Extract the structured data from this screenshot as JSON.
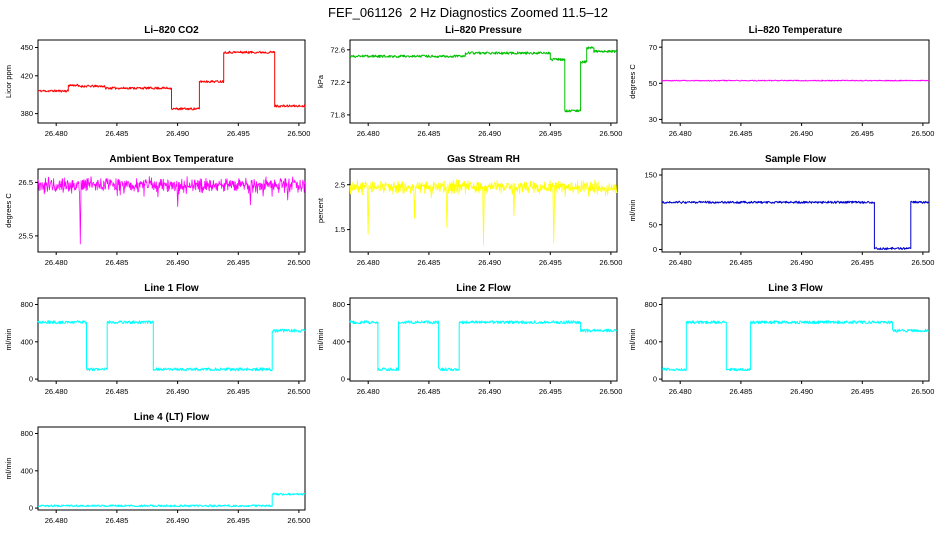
{
  "title": "FEF_061126  2 Hz Diagnostics Zoomed 11.5–12",
  "chart_data": [
    {
      "type": "line",
      "title": "Li–820 CO2",
      "ylabel": "Licor ppm",
      "color": "#ff0000",
      "xlim": [
        26.4785,
        26.5005
      ],
      "xticks": [
        26.48,
        26.485,
        26.49,
        26.495,
        26.5
      ],
      "xtick_labels": [
        "26.480",
        "26.485",
        "26.490",
        "26.495",
        "26.500"
      ],
      "ylim": [
        370,
        458
      ],
      "yticks": [
        380,
        420,
        450
      ],
      "ytick_labels": [
        "380",
        "420",
        "450"
      ],
      "series_type": "steps",
      "jitter": 1.2,
      "steps": [
        [
          26.4785,
          26.481,
          404
        ],
        [
          26.481,
          26.4818,
          410
        ],
        [
          26.4818,
          26.484,
          409
        ],
        [
          26.484,
          26.4895,
          407
        ],
        [
          26.4895,
          26.4918,
          385
        ],
        [
          26.4918,
          26.4938,
          414
        ],
        [
          26.4938,
          26.498,
          445
        ],
        [
          26.498,
          26.5005,
          388
        ]
      ]
    },
    {
      "type": "line",
      "title": "Li–820 Pressure",
      "ylabel": "kPa",
      "color": "#00c000",
      "xlim": [
        26.4785,
        26.5005
      ],
      "xticks": [
        26.48,
        26.485,
        26.49,
        26.495,
        26.5
      ],
      "xtick_labels": [
        "26.480",
        "26.485",
        "26.490",
        "26.495",
        "26.500"
      ],
      "ylim": [
        71.7,
        72.72
      ],
      "yticks": [
        71.8,
        72.2,
        72.6
      ],
      "ytick_labels": [
        "71.8",
        "72.2",
        "72.6"
      ],
      "series_type": "steps",
      "jitter": 0.015,
      "steps": [
        [
          26.4785,
          26.488,
          72.52
        ],
        [
          26.488,
          26.495,
          72.56
        ],
        [
          26.495,
          26.4962,
          72.48
        ],
        [
          26.4962,
          26.4975,
          71.85
        ],
        [
          26.4975,
          26.498,
          72.45
        ],
        [
          26.498,
          26.4986,
          72.62
        ],
        [
          26.4986,
          26.5005,
          72.58
        ]
      ]
    },
    {
      "type": "line",
      "title": "Li–820 Temperature",
      "ylabel": "degrees C",
      "color": "#ff00ff",
      "xlim": [
        26.4785,
        26.5005
      ],
      "xticks": [
        26.48,
        26.485,
        26.49,
        26.495,
        26.5
      ],
      "xtick_labels": [
        "26.480",
        "26.485",
        "26.490",
        "26.495",
        "26.500"
      ],
      "ylim": [
        28,
        74
      ],
      "yticks": [
        30,
        50,
        70
      ],
      "ytick_labels": [
        "30",
        "50",
        "70"
      ],
      "series_type": "steps",
      "jitter": 0.25,
      "steps": [
        [
          26.4785,
          26.5005,
          51.5
        ]
      ]
    },
    {
      "type": "line",
      "title": "Ambient Box Temperature",
      "ylabel": "degrees C",
      "color": "#ff00ff",
      "xlim": [
        26.4785,
        26.5005
      ],
      "xticks": [
        26.48,
        26.485,
        26.49,
        26.495,
        26.5
      ],
      "xtick_labels": [
        "26.480",
        "26.485",
        "26.490",
        "26.495",
        "26.500"
      ],
      "ylim": [
        25.2,
        26.75
      ],
      "yticks": [
        25.5,
        26.5
      ],
      "ytick_labels": [
        "25.5",
        "26.5"
      ],
      "series_type": "noise",
      "noise": {
        "base": 26.45,
        "amplitude": 0.13,
        "spikes": [
          {
            "x": 26.482,
            "y": 25.35
          },
          {
            "x": 26.49,
            "y": 26.05
          },
          {
            "x": 26.496,
            "y": 26.08
          }
        ]
      }
    },
    {
      "type": "line",
      "title": "Gas Stream RH",
      "ylabel": "percent",
      "color": "#ffff00",
      "xlim": [
        26.4785,
        26.5005
      ],
      "xticks": [
        26.48,
        26.485,
        26.49,
        26.495,
        26.5
      ],
      "xtick_labels": [
        "26.480",
        "26.485",
        "26.490",
        "26.495",
        "26.500"
      ],
      "ylim": [
        1.0,
        2.85
      ],
      "yticks": [
        1.5,
        2.5
      ],
      "ytick_labels": [
        "1.5",
        "2.5"
      ],
      "series_type": "noise",
      "noise": {
        "base": 2.45,
        "amplitude": 0.13,
        "spikes": [
          {
            "x": 26.48,
            "y": 1.4
          },
          {
            "x": 26.4838,
            "y": 1.75
          },
          {
            "x": 26.4865,
            "y": 1.55
          },
          {
            "x": 26.4895,
            "y": 1.15
          },
          {
            "x": 26.492,
            "y": 1.8
          },
          {
            "x": 26.4953,
            "y": 1.2
          }
        ]
      }
    },
    {
      "type": "line",
      "title": "Sample Flow",
      "ylabel": "ml/min",
      "color": "#0000cc",
      "xlim": [
        26.4785,
        26.5005
      ],
      "xticks": [
        26.48,
        26.485,
        26.49,
        26.495,
        26.5
      ],
      "xtick_labels": [
        "26.480",
        "26.485",
        "26.490",
        "26.495",
        "26.500"
      ],
      "ylim": [
        -5,
        162
      ],
      "yticks": [
        0,
        50,
        150
      ],
      "ytick_labels": [
        "0",
        "50",
        "150"
      ],
      "series_type": "steps",
      "jitter": 2.2,
      "steps": [
        [
          26.4785,
          26.496,
          95
        ],
        [
          26.496,
          26.499,
          2
        ],
        [
          26.499,
          26.5005,
          95
        ]
      ]
    },
    {
      "type": "line",
      "title": "Line 1 Flow",
      "ylabel": "ml/min",
      "color": "#00ffff",
      "xlim": [
        26.4785,
        26.5005
      ],
      "xticks": [
        26.48,
        26.485,
        26.49,
        26.495,
        26.5
      ],
      "xtick_labels": [
        "26.480",
        "26.485",
        "26.490",
        "26.495",
        "26.500"
      ],
      "ylim": [
        -20,
        870
      ],
      "yticks": [
        0,
        400,
        800
      ],
      "ytick_labels": [
        "0",
        "400",
        "800"
      ],
      "series_type": "steps",
      "jitter": 16,
      "steps": [
        [
          26.4785,
          26.4825,
          610
        ],
        [
          26.4825,
          26.4842,
          105
        ],
        [
          26.4842,
          26.488,
          610
        ],
        [
          26.488,
          26.4978,
          105
        ],
        [
          26.4978,
          26.5005,
          520
        ]
      ]
    },
    {
      "type": "line",
      "title": "Line 2 Flow",
      "ylabel": "ml/min",
      "color": "#00ffff",
      "xlim": [
        26.4785,
        26.5005
      ],
      "xticks": [
        26.48,
        26.485,
        26.49,
        26.495,
        26.5
      ],
      "xtick_labels": [
        "26.480",
        "26.485",
        "26.490",
        "26.495",
        "26.500"
      ],
      "ylim": [
        -20,
        870
      ],
      "yticks": [
        0,
        400,
        800
      ],
      "ytick_labels": [
        "0",
        "400",
        "800"
      ],
      "series_type": "steps",
      "jitter": 16,
      "steps": [
        [
          26.4785,
          26.4808,
          610
        ],
        [
          26.4808,
          26.4825,
          105
        ],
        [
          26.4825,
          26.4858,
          610
        ],
        [
          26.4858,
          26.4875,
          105
        ],
        [
          26.4875,
          26.4975,
          610
        ],
        [
          26.4975,
          26.5005,
          520
        ]
      ]
    },
    {
      "type": "line",
      "title": "Line 3 Flow",
      "ylabel": "ml/min",
      "color": "#00ffff",
      "xlim": [
        26.4785,
        26.5005
      ],
      "xticks": [
        26.48,
        26.485,
        26.49,
        26.495,
        26.5
      ],
      "xtick_labels": [
        "26.480",
        "26.485",
        "26.490",
        "26.495",
        "26.500"
      ],
      "ylim": [
        -20,
        870
      ],
      "yticks": [
        0,
        400,
        800
      ],
      "ytick_labels": [
        "0",
        "400",
        "800"
      ],
      "series_type": "steps",
      "jitter": 16,
      "steps": [
        [
          26.4785,
          26.4805,
          105
        ],
        [
          26.4805,
          26.4838,
          610
        ],
        [
          26.4838,
          26.4858,
          105
        ],
        [
          26.4858,
          26.4975,
          610
        ],
        [
          26.4975,
          26.5005,
          520
        ]
      ]
    },
    {
      "type": "line",
      "title": "Line 4 (LT) Flow",
      "ylabel": "ml/min",
      "color": "#00ffff",
      "xlim": [
        26.4785,
        26.5005
      ],
      "xticks": [
        26.48,
        26.485,
        26.49,
        26.495,
        26.5
      ],
      "xtick_labels": [
        "26.480",
        "26.485",
        "26.490",
        "26.495",
        "26.500"
      ],
      "ylim": [
        -20,
        870
      ],
      "yticks": [
        0,
        400,
        800
      ],
      "ytick_labels": [
        "0",
        "400",
        "800"
      ],
      "series_type": "steps",
      "jitter": 10,
      "steps": [
        [
          26.4785,
          26.4978,
          25
        ],
        [
          26.4978,
          26.5005,
          150
        ]
      ]
    }
  ]
}
